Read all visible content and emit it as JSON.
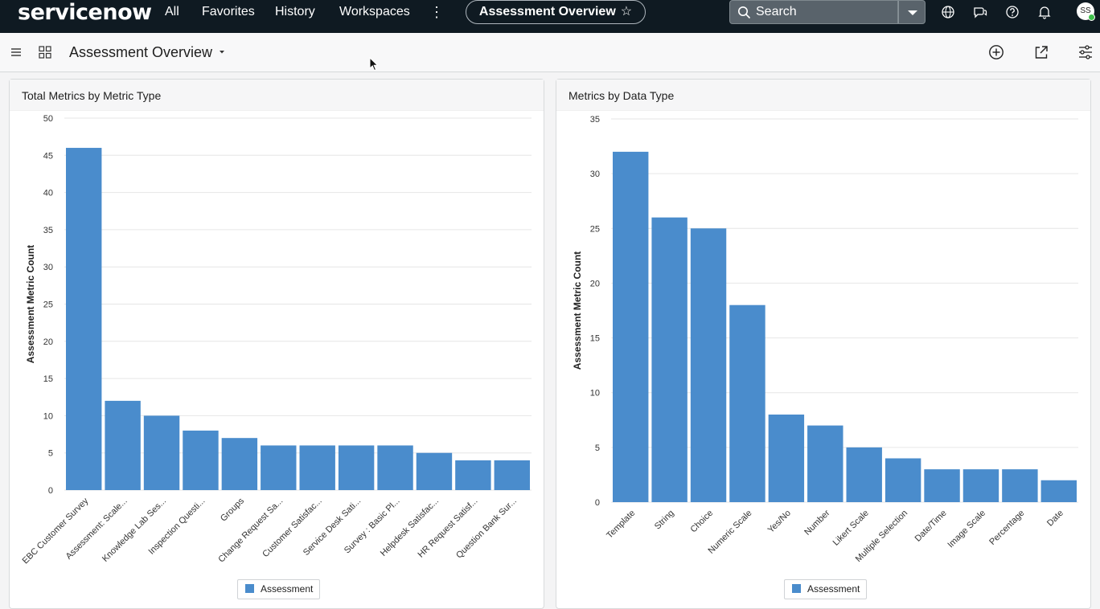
{
  "app": {
    "logo_text": "servicenow"
  },
  "nav": {
    "all": "All",
    "favorites": "Favorites",
    "history": "History",
    "workspaces": "Workspaces",
    "more": "⋮"
  },
  "pill": {
    "title": "Assessment Overview",
    "star": "☆"
  },
  "search": {
    "label": "Search"
  },
  "user": {
    "initials": "SS"
  },
  "page": {
    "title": "Assessment Overview"
  },
  "colors": {
    "bar": "#4a8ccc",
    "grid": "#e6e6e6",
    "topbar": "#0f1a22"
  },
  "chart_data": [
    {
      "type": "bar",
      "title": "Total Metrics by Metric Type",
      "ylabel": "Assessment Metric Count",
      "xlabel": "",
      "ylim": [
        0,
        50
      ],
      "yticks": [
        0,
        5,
        10,
        15,
        20,
        25,
        30,
        35,
        40,
        45,
        50
      ],
      "categories": [
        "EBC Customer Survey",
        "Assessment: Scale...",
        "Knowledge Lab Ses...",
        "Inspection Questi...",
        "Groups",
        "Change Request Sa...",
        "Customer Satisfac...",
        "Service Desk Sati...",
        "Survey : Basic Pl...",
        "Helpdesk Satisfac...",
        "HR Request Satisf...",
        "Question Bank Sur..."
      ],
      "series": [
        {
          "name": "Assessment",
          "values": [
            46,
            12,
            10,
            8,
            7,
            6,
            6,
            6,
            6,
            5,
            4,
            4
          ]
        }
      ],
      "legend": "bottom",
      "grid": true
    },
    {
      "type": "bar",
      "title": "Metrics by Data Type",
      "ylabel": "Assessment Metric Count",
      "xlabel": "",
      "ylim": [
        0,
        35
      ],
      "yticks": [
        0,
        5,
        10,
        15,
        20,
        25,
        30,
        35
      ],
      "categories": [
        "Template",
        "String",
        "Choice",
        "Numeric Scale",
        "Yes/No",
        "Number",
        "Likert Scale",
        "Multiple Selection",
        "Date/Time",
        "Image Scale",
        "Percentage",
        "Date"
      ],
      "series": [
        {
          "name": "Assessment",
          "values": [
            32,
            26,
            25,
            18,
            8,
            7,
            5,
            4,
            3,
            3,
            3,
            2
          ]
        }
      ],
      "legend": "bottom",
      "grid": true
    }
  ]
}
